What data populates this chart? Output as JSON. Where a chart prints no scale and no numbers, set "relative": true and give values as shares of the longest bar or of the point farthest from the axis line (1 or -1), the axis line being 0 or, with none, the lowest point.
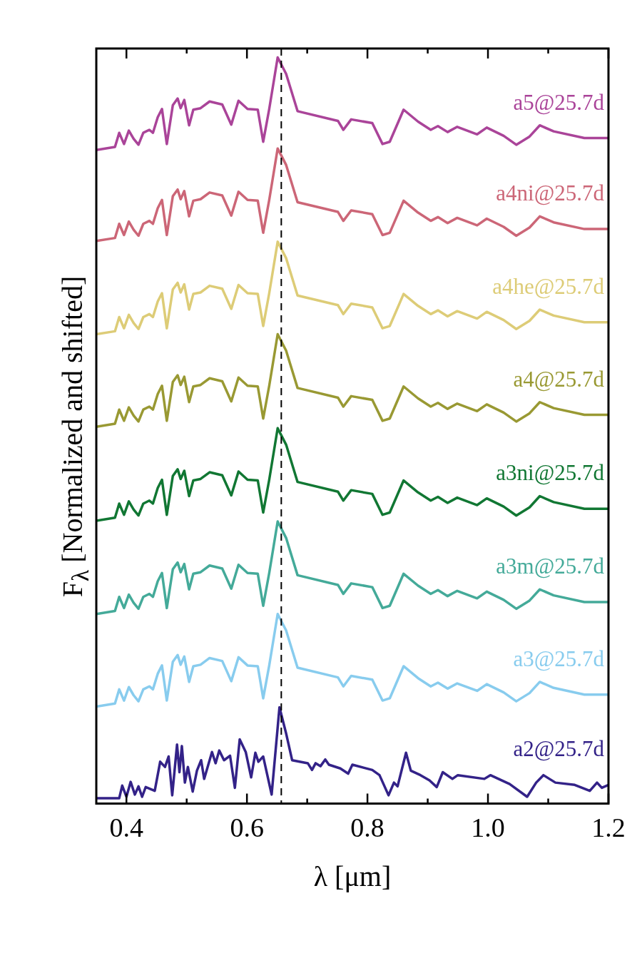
{
  "chart_data": {
    "type": "line",
    "xlabel": "λ [μm]",
    "ylabel": "F$_{λ}$ [Normalized and shifted]",
    "relative": true,
    "xlim": [
      0.35,
      1.2
    ],
    "xticks": [
      {
        "value": 0.4,
        "label": "0.4"
      },
      {
        "value": 0.6,
        "label": "0.6"
      },
      {
        "value": 0.8,
        "label": "0.8"
      },
      {
        "value": 1.0,
        "label": "1.0"
      },
      {
        "value": 1.2,
        "label": "1.2"
      }
    ],
    "tick_labels": "x",
    "grid": false,
    "legend": false,
    "marker": "none",
    "line_style": "solid",
    "x": [
      0.35,
      0.381,
      0.388,
      0.396,
      0.404,
      0.412,
      0.42,
      0.428,
      0.438,
      0.444,
      0.452,
      0.459,
      0.467,
      0.477,
      0.485,
      0.49,
      0.496,
      0.504,
      0.511,
      0.523,
      0.538,
      0.559,
      0.574,
      0.586,
      0.601,
      0.618,
      0.627,
      0.637,
      0.651,
      0.665,
      0.684,
      0.751,
      0.76,
      0.773,
      0.808,
      0.825,
      0.837,
      0.86,
      0.884,
      0.905,
      0.917,
      0.933,
      0.949,
      0.982,
      0.998,
      1.026,
      1.047,
      1.069,
      1.086,
      1.109,
      1.16,
      1.2
    ],
    "ref_lines": [
      {
        "axis": "x",
        "value": 0.657,
        "color": "#000000",
        "line_style": "dashed"
      }
    ],
    "series": [
      {
        "name": "a5@25.7d",
        "color": "#aa4499",
        "values": [
          0.876,
          0.88,
          0.899,
          0.884,
          0.902,
          0.891,
          0.883,
          0.899,
          0.903,
          0.899,
          0.92,
          0.931,
          0.884,
          0.936,
          0.945,
          0.932,
          0.943,
          0.909,
          0.93,
          0.932,
          0.941,
          0.937,
          0.91,
          0.942,
          0.931,
          0.93,
          0.887,
          0.931,
          1.0,
          0.978,
          0.928,
          0.915,
          0.903,
          0.917,
          0.912,
          0.884,
          0.887,
          0.93,
          0.914,
          0.903,
          0.908,
          0.9,
          0.907,
          0.897,
          0.906,
          0.895,
          0.883,
          0.894,
          0.909,
          0.901,
          0.892,
          0.892
        ]
      },
      {
        "name": "a4ni@25.7d",
        "color": "#cc6677",
        "values": [
          0.754,
          0.758,
          0.777,
          0.762,
          0.78,
          0.769,
          0.761,
          0.777,
          0.781,
          0.777,
          0.798,
          0.809,
          0.762,
          0.814,
          0.823,
          0.81,
          0.821,
          0.787,
          0.808,
          0.81,
          0.819,
          0.815,
          0.788,
          0.82,
          0.809,
          0.808,
          0.765,
          0.809,
          0.878,
          0.856,
          0.806,
          0.793,
          0.781,
          0.795,
          0.79,
          0.762,
          0.765,
          0.808,
          0.792,
          0.781,
          0.786,
          0.778,
          0.785,
          0.775,
          0.784,
          0.773,
          0.761,
          0.772,
          0.787,
          0.779,
          0.77,
          0.77
        ]
      },
      {
        "name": "a4he@25.7d",
        "color": "#ddcc77",
        "values": [
          0.629,
          0.633,
          0.652,
          0.637,
          0.655,
          0.644,
          0.636,
          0.652,
          0.656,
          0.652,
          0.673,
          0.684,
          0.637,
          0.689,
          0.698,
          0.685,
          0.696,
          0.662,
          0.683,
          0.685,
          0.694,
          0.69,
          0.663,
          0.695,
          0.684,
          0.683,
          0.64,
          0.684,
          0.753,
          0.731,
          0.681,
          0.668,
          0.656,
          0.67,
          0.665,
          0.637,
          0.64,
          0.683,
          0.667,
          0.656,
          0.661,
          0.653,
          0.66,
          0.65,
          0.659,
          0.648,
          0.636,
          0.647,
          0.662,
          0.654,
          0.645,
          0.645
        ]
      },
      {
        "name": "a4@25.7d",
        "color": "#999933",
        "values": [
          0.505,
          0.509,
          0.528,
          0.513,
          0.531,
          0.52,
          0.512,
          0.528,
          0.532,
          0.528,
          0.549,
          0.56,
          0.513,
          0.565,
          0.574,
          0.561,
          0.572,
          0.538,
          0.559,
          0.561,
          0.57,
          0.566,
          0.539,
          0.571,
          0.56,
          0.559,
          0.516,
          0.56,
          0.629,
          0.607,
          0.557,
          0.544,
          0.532,
          0.546,
          0.541,
          0.513,
          0.516,
          0.559,
          0.543,
          0.532,
          0.537,
          0.529,
          0.536,
          0.526,
          0.535,
          0.524,
          0.512,
          0.523,
          0.538,
          0.53,
          0.521,
          0.521
        ]
      },
      {
        "name": "a3ni@25.7d",
        "color": "#117733",
        "values": [
          0.379,
          0.383,
          0.402,
          0.387,
          0.405,
          0.394,
          0.386,
          0.402,
          0.406,
          0.402,
          0.423,
          0.434,
          0.387,
          0.439,
          0.448,
          0.435,
          0.446,
          0.412,
          0.433,
          0.435,
          0.444,
          0.44,
          0.413,
          0.445,
          0.434,
          0.433,
          0.39,
          0.434,
          0.503,
          0.481,
          0.431,
          0.418,
          0.406,
          0.42,
          0.415,
          0.387,
          0.39,
          0.433,
          0.417,
          0.406,
          0.411,
          0.403,
          0.41,
          0.4,
          0.409,
          0.398,
          0.386,
          0.397,
          0.412,
          0.404,
          0.395,
          0.395
        ]
      },
      {
        "name": "a3m@25.7d",
        "color": "#44aa99",
        "values": [
          0.254,
          0.258,
          0.277,
          0.262,
          0.28,
          0.269,
          0.261,
          0.277,
          0.281,
          0.277,
          0.298,
          0.309,
          0.262,
          0.314,
          0.323,
          0.31,
          0.321,
          0.287,
          0.308,
          0.31,
          0.319,
          0.315,
          0.288,
          0.32,
          0.309,
          0.308,
          0.265,
          0.309,
          0.378,
          0.356,
          0.306,
          0.293,
          0.281,
          0.295,
          0.29,
          0.262,
          0.265,
          0.308,
          0.292,
          0.281,
          0.286,
          0.278,
          0.285,
          0.275,
          0.284,
          0.273,
          0.261,
          0.272,
          0.287,
          0.279,
          0.27,
          0.27
        ]
      },
      {
        "name": "a3@25.7d",
        "color": "#88ccee",
        "values": [
          0.13,
          0.134,
          0.153,
          0.138,
          0.156,
          0.145,
          0.137,
          0.153,
          0.157,
          0.153,
          0.174,
          0.185,
          0.138,
          0.19,
          0.199,
          0.186,
          0.197,
          0.163,
          0.184,
          0.186,
          0.195,
          0.191,
          0.164,
          0.196,
          0.185,
          0.184,
          0.141,
          0.185,
          0.254,
          0.232,
          0.182,
          0.169,
          0.157,
          0.171,
          0.166,
          0.138,
          0.141,
          0.184,
          0.168,
          0.157,
          0.162,
          0.154,
          0.161,
          0.151,
          0.16,
          0.149,
          0.137,
          0.148,
          0.163,
          0.155,
          0.146,
          0.146
        ]
      },
      {
        "name": "a2@25.7d",
        "color": "#332288",
        "x": [
          0.35,
          0.388,
          0.393,
          0.4,
          0.407,
          0.414,
          0.42,
          0.426,
          0.432,
          0.447,
          0.456,
          0.464,
          0.47,
          0.476,
          0.484,
          0.488,
          0.492,
          0.497,
          0.502,
          0.51,
          0.517,
          0.524,
          0.529,
          0.542,
          0.548,
          0.554,
          0.562,
          0.572,
          0.58,
          0.588,
          0.598,
          0.607,
          0.614,
          0.619,
          0.627,
          0.641,
          0.654,
          0.665,
          0.675,
          0.701,
          0.708,
          0.714,
          0.722,
          0.73,
          0.736,
          0.755,
          0.768,
          0.775,
          0.808,
          0.82,
          0.835,
          0.844,
          0.85,
          0.864,
          0.872,
          0.888,
          0.903,
          0.915,
          0.925,
          0.941,
          0.95,
          0.994,
          1.004,
          1.036,
          1.065,
          1.08,
          1.092,
          1.112,
          1.144,
          1.169,
          1.181,
          1.189,
          1.2
        ],
        "values": [
          0.007,
          0.007,
          0.024,
          0.009,
          0.029,
          0.012,
          0.023,
          0.009,
          0.022,
          0.017,
          0.056,
          0.049,
          0.063,
          0.011,
          0.079,
          0.042,
          0.077,
          0.028,
          0.049,
          0.016,
          0.044,
          0.058,
          0.033,
          0.069,
          0.054,
          0.071,
          0.058,
          0.064,
          0.021,
          0.086,
          0.069,
          0.035,
          0.068,
          0.056,
          0.063,
          0.012,
          0.129,
          0.094,
          0.058,
          0.054,
          0.045,
          0.054,
          0.05,
          0.059,
          0.052,
          0.047,
          0.04,
          0.052,
          0.045,
          0.038,
          0.011,
          0.028,
          0.023,
          0.068,
          0.044,
          0.038,
          0.031,
          0.022,
          0.042,
          0.033,
          0.038,
          0.033,
          0.038,
          0.026,
          0.009,
          0.028,
          0.038,
          0.028,
          0.025,
          0.017,
          0.028,
          0.021,
          0.025
        ]
      }
    ]
  }
}
